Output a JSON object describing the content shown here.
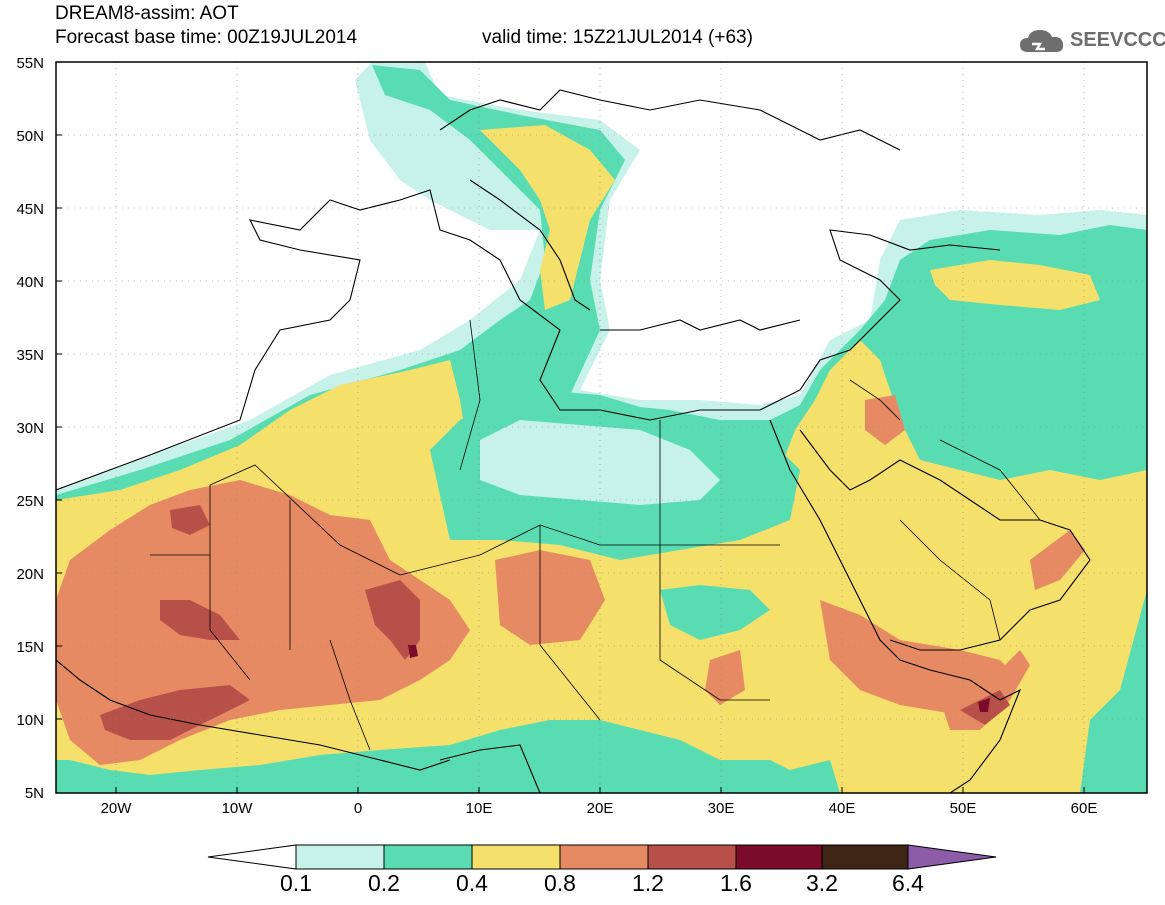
{
  "header": {
    "line1": "DREAM8-assim: AOT",
    "line2_base": "Forecast base time: 00Z19JUL2014",
    "line2_valid": "valid time: 15Z21JUL2014 (+63)"
  },
  "logo": {
    "text": "SEEVCCC",
    "icon": "cloud-icon"
  },
  "axes": {
    "lat_labels": [
      "55N",
      "50N",
      "45N",
      "40N",
      "35N",
      "30N",
      "25N",
      "20N",
      "15N",
      "10N",
      "5N"
    ],
    "lon_labels": [
      "20W",
      "10W",
      "0",
      "10E",
      "20E",
      "30E",
      "40E",
      "50E",
      "60E"
    ]
  },
  "colorbar": {
    "labels": [
      "0.1",
      "0.2",
      "0.4",
      "0.8",
      "1.2",
      "1.6",
      "3.2",
      "6.4"
    ],
    "colors": [
      "#ffffff",
      "#c6f2ea",
      "#59dcb2",
      "#f4e06a",
      "#e68a63",
      "#b8504a",
      "#7a0c2a",
      "#3e2414",
      "#8c5ca8"
    ]
  },
  "field_colors": {
    "c01": "#c6f2ea",
    "c02": "#59dcb2",
    "c04": "#f4e06a",
    "c08": "#e68a63",
    "c12": "#b8504a",
    "c16": "#7a0c2a"
  }
}
